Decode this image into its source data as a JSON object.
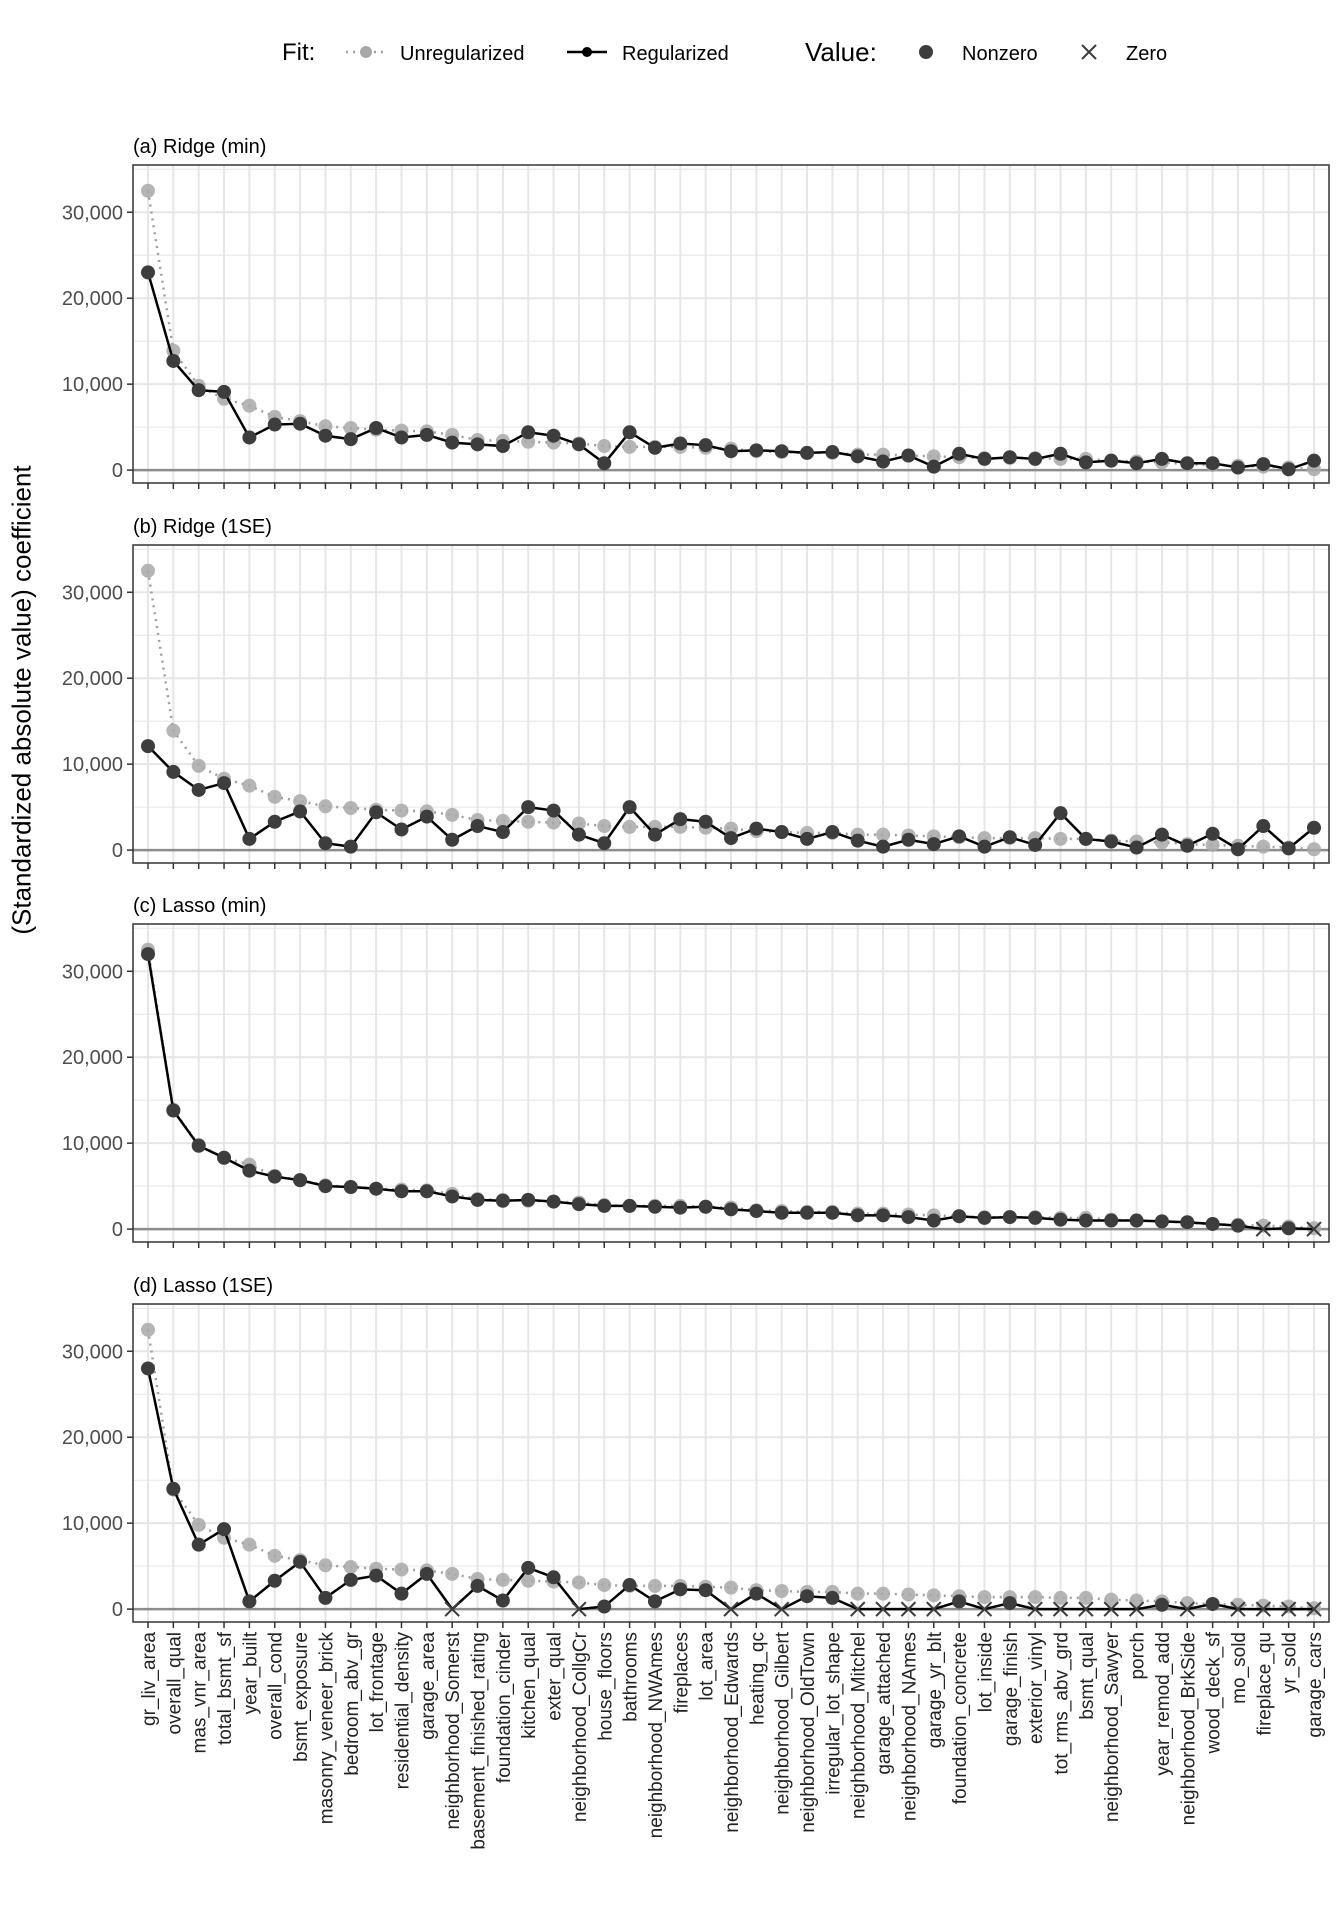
{
  "legend": {
    "fit_title": "Fit:",
    "fit_items": [
      "Unregularized",
      "Regularized"
    ],
    "value_title": "Value:",
    "value_items": [
      "Nonzero",
      "Zero"
    ]
  },
  "y_axis_title": "(Standardized absolute value) coefficient",
  "colors": {
    "regularized": "#000000",
    "unregularized": "#9e9e9e",
    "point_dark": "#3d3d3d",
    "point_light": "#a8a8a8",
    "grid": "#e6e6e6",
    "zero_line": "#8c8c8c"
  },
  "chart_data": {
    "type": "line",
    "ylim": [
      -1500,
      35500
    ],
    "yticks": [
      0,
      10000,
      20000,
      30000
    ],
    "ytick_labels": [
      "0",
      "10,000",
      "20,000",
      "30,000"
    ],
    "categories": [
      "gr_liv_area",
      "overall_qual",
      "mas_vnr_area",
      "total_bsmt_sf",
      "year_built",
      "overall_cond",
      "bsmt_exposure",
      "masonry_veneer_brick",
      "bedroom_abv_gr",
      "lot_frontage",
      "residential_density",
      "garage_area",
      "neighborhood_Somerst",
      "basement_finished_rating",
      "foundation_cinder",
      "kitchen_qual",
      "exter_qual",
      "neighborhood_CollgCr",
      "house_floors",
      "bathrooms",
      "neighborhood_NWAmes",
      "fireplaces",
      "lot_area",
      "neighborhood_Edwards",
      "heating_qc",
      "neighborhood_Gilbert",
      "neighborhood_OldTown",
      "irregular_lot_shape",
      "neighborhood_Mitchel",
      "garage_attached",
      "neighborhood_NAmes",
      "garage_yr_blt",
      "foundation_concrete",
      "lot_inside",
      "garage_finish",
      "exterior_vinyl",
      "tot_rms_abv_grd",
      "bsmt_qual",
      "neighborhood_Sawyer",
      "porch",
      "year_remod_add",
      "neighborhood_BrkSide",
      "wood_deck_sf",
      "mo_sold",
      "fireplace_qu",
      "yr_sold",
      "garage_cars"
    ],
    "unregularized": [
      32500,
      13900,
      9800,
      8300,
      7500,
      6200,
      5700,
      5100,
      4900,
      4700,
      4600,
      4500,
      4100,
      3500,
      3400,
      3300,
      3200,
      3100,
      2800,
      2700,
      2700,
      2700,
      2600,
      2500,
      2200,
      2100,
      2000,
      2000,
      1800,
      1800,
      1700,
      1600,
      1500,
      1400,
      1400,
      1400,
      1300,
      1300,
      1100,
      1000,
      900,
      700,
      600,
      500,
      400,
      300,
      100
    ],
    "panels": [
      {
        "title": "(a) Ridge (min)",
        "values": [
          23000,
          12700,
          9300,
          9100,
          3800,
          5300,
          5400,
          4000,
          3600,
          4900,
          3800,
          4100,
          3200,
          3000,
          2800,
          4400,
          4000,
          3000,
          800,
          4400,
          2600,
          3100,
          2900,
          2200,
          2300,
          2200,
          2000,
          2100,
          1600,
          1000,
          1700,
          400,
          1900,
          1300,
          1500,
          1300,
          1900,
          900,
          1100,
          800,
          1300,
          800,
          800,
          300,
          700,
          100,
          1100
        ],
        "zero": []
      },
      {
        "title": "(b) Ridge (1SE)",
        "values": [
          12100,
          9100,
          7000,
          7800,
          1300,
          3300,
          4500,
          800,
          400,
          4400,
          2400,
          3900,
          1200,
          2800,
          2100,
          5000,
          4600,
          1800,
          800,
          5000,
          1800,
          3600,
          3300,
          1400,
          2500,
          2100,
          1300,
          2100,
          1100,
          400,
          1200,
          700,
          1600,
          400,
          1500,
          600,
          4300,
          1300,
          1000,
          300,
          1800,
          500,
          1900,
          100,
          2800,
          200,
          2600
        ],
        "zero": []
      },
      {
        "title": "(c) Lasso (min)",
        "values": [
          32000,
          13800,
          9700,
          8300,
          6800,
          6100,
          5700,
          5000,
          4900,
          4700,
          4400,
          4400,
          3800,
          3400,
          3300,
          3400,
          3200,
          2900,
          2700,
          2700,
          2600,
          2500,
          2600,
          2300,
          2100,
          1900,
          1900,
          1900,
          1600,
          1600,
          1400,
          1000,
          1500,
          1300,
          1400,
          1300,
          1100,
          1000,
          1000,
          1000,
          900,
          800,
          600,
          400,
          0,
          100,
          0
        ],
        "zero": [
          44,
          46
        ]
      },
      {
        "title": "(d) Lasso (1SE)",
        "values": [
          28000,
          14000,
          7500,
          9300,
          900,
          3300,
          5500,
          1300,
          3400,
          3900,
          1800,
          4100,
          0,
          2700,
          1000,
          4800,
          3700,
          0,
          300,
          2800,
          900,
          2300,
          2200,
          0,
          1800,
          0,
          1500,
          1300,
          0,
          0,
          0,
          0,
          900,
          0,
          700,
          0,
          0,
          0,
          0,
          0,
          500,
          0,
          600,
          0,
          0,
          0,
          0
        ],
        "zero": [
          12,
          17,
          23,
          25,
          28,
          29,
          30,
          31,
          33,
          35,
          36,
          37,
          38,
          39,
          41,
          43,
          44,
          45,
          46
        ]
      }
    ]
  }
}
